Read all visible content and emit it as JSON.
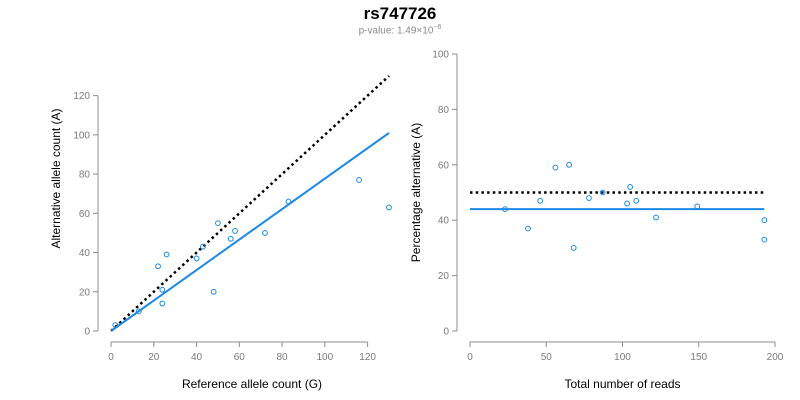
{
  "title": "rs747726",
  "subtitle": {
    "prefix": "p-value: ",
    "mantissa": "1.49×10",
    "exponent": "−6"
  },
  "colors": {
    "fit": "#1e88e5",
    "points": "#1e88e5",
    "reference": "#000000",
    "axis": "#8c8c8c",
    "tick_text": "#7a7a7a"
  },
  "chart_data": [
    {
      "type": "scatter",
      "xlabel": "Reference allele count (G)",
      "ylabel": "Alternative allele count (A)",
      "xlim": [
        0,
        130
      ],
      "ylim": [
        0,
        130
      ],
      "xticks": [
        "0",
        "20",
        "40",
        "60",
        "80",
        "100",
        "120"
      ],
      "yticks": [
        "0",
        "20",
        "40",
        "60",
        "80",
        "100",
        "120"
      ],
      "points": [
        {
          "x": 2,
          "y": 3
        },
        {
          "x": 13,
          "y": 10
        },
        {
          "x": 22,
          "y": 33
        },
        {
          "x": 24,
          "y": 14
        },
        {
          "x": 24,
          "y": 21
        },
        {
          "x": 26,
          "y": 39
        },
        {
          "x": 40,
          "y": 37
        },
        {
          "x": 43,
          "y": 43
        },
        {
          "x": 48,
          "y": 20
        },
        {
          "x": 50,
          "y": 55
        },
        {
          "x": 56,
          "y": 47
        },
        {
          "x": 58,
          "y": 51
        },
        {
          "x": 72,
          "y": 50
        },
        {
          "x": 83,
          "y": 66
        },
        {
          "x": 116,
          "y": 77
        },
        {
          "x": 130,
          "y": 63
        }
      ],
      "fit_line": [
        {
          "x": 0,
          "y": 0
        },
        {
          "x": 130,
          "y": 101
        }
      ],
      "reference_line": [
        {
          "x": 0,
          "y": 0
        },
        {
          "x": 130,
          "y": 130
        }
      ]
    },
    {
      "type": "scatter",
      "xlabel": "Total number of reads",
      "ylabel": "Percentage alternative (A)",
      "xlim": [
        0,
        200
      ],
      "ylim": [
        0,
        100
      ],
      "xticks": [
        "0",
        "50",
        "100",
        "150",
        "200"
      ],
      "yticks": [
        "0",
        "20",
        "40",
        "60",
        "80",
        "100"
      ],
      "points": [
        {
          "x": 23,
          "y": 44
        },
        {
          "x": 38,
          "y": 37
        },
        {
          "x": 46,
          "y": 47
        },
        {
          "x": 56,
          "y": 59
        },
        {
          "x": 65,
          "y": 60
        },
        {
          "x": 68,
          "y": 30
        },
        {
          "x": 78,
          "y": 48
        },
        {
          "x": 87,
          "y": 50
        },
        {
          "x": 103,
          "y": 46
        },
        {
          "x": 105,
          "y": 52
        },
        {
          "x": 109,
          "y": 47
        },
        {
          "x": 122,
          "y": 41
        },
        {
          "x": 149,
          "y": 45
        },
        {
          "x": 193,
          "y": 40
        },
        {
          "x": 193,
          "y": 33
        }
      ],
      "fit_line": [
        {
          "x": 0,
          "y": 44
        },
        {
          "x": 193,
          "y": 44
        }
      ],
      "reference_line": [
        {
          "x": 0,
          "y": 50
        },
        {
          "x": 193,
          "y": 50
        }
      ]
    }
  ]
}
